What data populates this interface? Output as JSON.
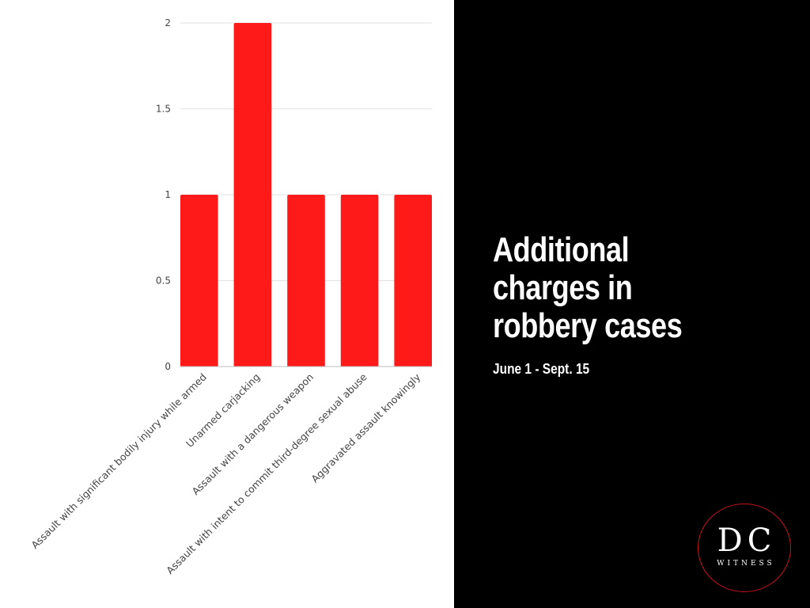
{
  "chart_data": {
    "type": "bar",
    "categories": [
      "Assault with significant bodily injury while armed",
      "Unarmed carjacking",
      "Assault with a dangerous weapon",
      "Assault with intent to commit third-degree sexual abuse",
      "Aggravated assault knowingly"
    ],
    "values": [
      1,
      2,
      1,
      1,
      1
    ],
    "ylim": [
      0,
      2
    ],
    "yticks": [
      0,
      0.5,
      1,
      1.5,
      2
    ],
    "ytick_labels": [
      "0",
      "0.5",
      "1",
      "1.5",
      "2"
    ],
    "grid": true,
    "legend": "none",
    "bar_color": "#ff1a1a",
    "title": "",
    "xlabel": "",
    "ylabel": ""
  },
  "title_panel": {
    "title": "Additional\ncharges in\nrobbery cases",
    "subtitle": "June 1 - Sept. 15",
    "background": "#000000"
  },
  "logo": {
    "main": "DC",
    "sub": "WITNESS",
    "ring_color": "#c4141b"
  }
}
